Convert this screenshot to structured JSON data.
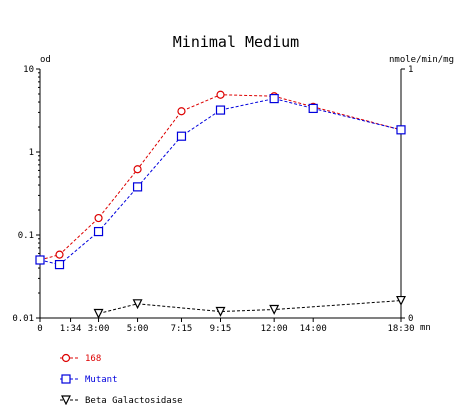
{
  "chart_data": {
    "type": "line",
    "title": "Minimal Medium",
    "y_left_unit": "od",
    "y_right_unit": "nmole/min/mg",
    "x_unit": "mn",
    "y_left_scale": "log",
    "y_left_range": [
      0.01,
      10
    ],
    "y_left_ticks": [
      "0.01",
      "0.1",
      "1",
      "10"
    ],
    "y_right_range": [
      0,
      1
    ],
    "y_right_ticks": [
      "0",
      "1"
    ],
    "x_range": [
      0,
      1110
    ],
    "x_ticks": [
      {
        "value": 0,
        "label": "0"
      },
      {
        "value": 94,
        "label": "1:34"
      },
      {
        "value": 180,
        "label": "3:00"
      },
      {
        "value": 300,
        "label": "5:00"
      },
      {
        "value": 435,
        "label": "7:15"
      },
      {
        "value": 555,
        "label": "9:15"
      },
      {
        "value": 720,
        "label": "12:00"
      },
      {
        "value": 840,
        "label": "14:00"
      },
      {
        "value": 1110,
        "label": "18:30"
      }
    ],
    "legend_position": "bottom-left",
    "series": [
      {
        "name": "168",
        "color": "#dd0000",
        "marker": "circle",
        "axis": "left",
        "points": [
          [
            0,
            0.05
          ],
          [
            60,
            0.058
          ],
          [
            180,
            0.16
          ],
          [
            300,
            0.62
          ],
          [
            435,
            3.1
          ],
          [
            555,
            4.9
          ],
          [
            720,
            4.7
          ],
          [
            840,
            3.5
          ],
          [
            1110,
            1.85
          ]
        ]
      },
      {
        "name": "Mutant",
        "color": "#0000dd",
        "marker": "square",
        "axis": "left",
        "points": [
          [
            0,
            0.05
          ],
          [
            60,
            0.044
          ],
          [
            180,
            0.11
          ],
          [
            300,
            0.38
          ],
          [
            435,
            1.55
          ],
          [
            555,
            3.2
          ],
          [
            720,
            4.4
          ],
          [
            840,
            3.35
          ],
          [
            1110,
            1.85
          ]
        ]
      },
      {
        "name": "Beta Galactosidase",
        "color": "#000000",
        "marker": "triangle-down",
        "axis": "right",
        "points": [
          [
            180,
            0.018
          ],
          [
            300,
            0.057
          ],
          [
            555,
            0.026
          ],
          [
            720,
            0.034
          ],
          [
            1110,
            0.07
          ]
        ]
      }
    ]
  }
}
